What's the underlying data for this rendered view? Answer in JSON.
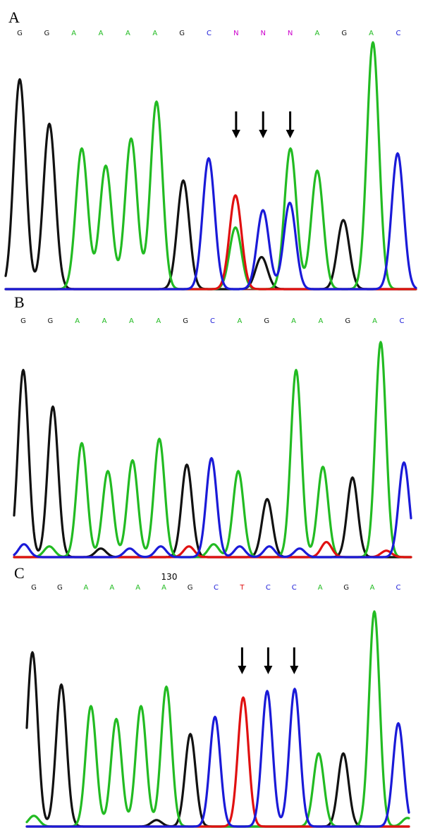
{
  "colors": {
    "A": "#22bb22",
    "C": "#1a1ad8",
    "G": "#111111",
    "T": "#e01010",
    "N": "#cc00cc",
    "baseline": "#8b2a2a"
  },
  "chart_data": [
    {
      "type": "line",
      "panel": "A",
      "bases": [
        "G",
        "G",
        "A",
        "A",
        "A",
        "A",
        "G",
        "C",
        "N",
        "N",
        "N",
        "A",
        "G",
        "A",
        "C"
      ],
      "position_label": "",
      "arrow_base_indices": [
        8,
        9,
        10
      ],
      "peaks": [
        {
          "base": "G",
          "x": 28,
          "h": 0.85
        },
        {
          "base": "G",
          "x": 70,
          "h": 0.67
        },
        {
          "base": "A",
          "x": 116,
          "h": 0.57
        },
        {
          "base": "A",
          "x": 150,
          "h": 0.5
        },
        {
          "base": "A",
          "x": 186,
          "h": 0.61
        },
        {
          "base": "A",
          "x": 222,
          "h": 0.76
        },
        {
          "base": "G",
          "x": 260,
          "h": 0.44
        },
        {
          "base": "C",
          "x": 296,
          "h": 0.53
        },
        {
          "base": "T",
          "x": 334,
          "h": 0.38
        },
        {
          "base": "A",
          "x": 334,
          "h": 0.25
        },
        {
          "base": "C",
          "x": 373,
          "h": 0.32
        },
        {
          "base": "G",
          "x": 371,
          "h": 0.13
        },
        {
          "base": "A",
          "x": 412,
          "h": 0.57
        },
        {
          "base": "C",
          "x": 411,
          "h": 0.35
        },
        {
          "base": "A",
          "x": 450,
          "h": 0.48
        },
        {
          "base": "G",
          "x": 487,
          "h": 0.28
        },
        {
          "base": "A",
          "x": 529,
          "h": 1.0
        },
        {
          "base": "C",
          "x": 564,
          "h": 0.55
        }
      ]
    },
    {
      "type": "line",
      "panel": "B",
      "bases": [
        "G",
        "G",
        "A",
        "A",
        "A",
        "A",
        "G",
        "C",
        "A",
        "G",
        "A",
        "A",
        "G",
        "A",
        "C"
      ],
      "position_label": "",
      "arrow_base_indices": [],
      "peaks": [
        {
          "base": "G",
          "x": 33,
          "h": 0.87
        },
        {
          "base": "G",
          "x": 75,
          "h": 0.7
        },
        {
          "base": "A",
          "x": 116,
          "h": 0.53
        },
        {
          "base": "A",
          "x": 153,
          "h": 0.4
        },
        {
          "base": "A",
          "x": 188,
          "h": 0.45
        },
        {
          "base": "A",
          "x": 226,
          "h": 0.55
        },
        {
          "base": "G",
          "x": 265,
          "h": 0.43
        },
        {
          "base": "C",
          "x": 300,
          "h": 0.46
        },
        {
          "base": "A",
          "x": 338,
          "h": 0.4
        },
        {
          "base": "G",
          "x": 379,
          "h": 0.27
        },
        {
          "base": "A",
          "x": 420,
          "h": 0.87
        },
        {
          "base": "A",
          "x": 458,
          "h": 0.42
        },
        {
          "base": "G",
          "x": 500,
          "h": 0.37
        },
        {
          "base": "A",
          "x": 540,
          "h": 1.0
        },
        {
          "base": "C",
          "x": 573,
          "h": 0.44
        },
        {
          "base": "C",
          "x": 34,
          "h": 0.06
        },
        {
          "base": "A",
          "x": 70,
          "h": 0.05
        },
        {
          "base": "G",
          "x": 143,
          "h": 0.04
        },
        {
          "base": "C",
          "x": 184,
          "h": 0.04
        },
        {
          "base": "C",
          "x": 228,
          "h": 0.05
        },
        {
          "base": "T",
          "x": 268,
          "h": 0.05
        },
        {
          "base": "A",
          "x": 303,
          "h": 0.06
        },
        {
          "base": "C",
          "x": 340,
          "h": 0.05
        },
        {
          "base": "C",
          "x": 382,
          "h": 0.05
        },
        {
          "base": "C",
          "x": 425,
          "h": 0.04
        },
        {
          "base": "T",
          "x": 463,
          "h": 0.07
        },
        {
          "base": "T",
          "x": 548,
          "h": 0.03
        }
      ]
    },
    {
      "type": "line",
      "panel": "C",
      "bases": [
        "G",
        "G",
        "A",
        "A",
        "A",
        "A",
        "G",
        "C",
        "T",
        "C",
        "C",
        "A",
        "G",
        "A",
        "C"
      ],
      "position_label": "130",
      "arrow_base_indices": [
        8,
        9,
        10
      ],
      "peaks": [
        {
          "base": "G",
          "x": 46,
          "h": 0.81
        },
        {
          "base": "G",
          "x": 87,
          "h": 0.66
        },
        {
          "base": "A",
          "x": 129,
          "h": 0.56
        },
        {
          "base": "A",
          "x": 165,
          "h": 0.5
        },
        {
          "base": "A",
          "x": 200,
          "h": 0.56
        },
        {
          "base": "A",
          "x": 236,
          "h": 0.65
        },
        {
          "base": "G",
          "x": 270,
          "h": 0.43
        },
        {
          "base": "C",
          "x": 305,
          "h": 0.51
        },
        {
          "base": "T",
          "x": 345,
          "h": 0.6
        },
        {
          "base": "C",
          "x": 379,
          "h": 0.63
        },
        {
          "base": "C",
          "x": 418,
          "h": 0.64
        },
        {
          "base": "A",
          "x": 452,
          "h": 0.34
        },
        {
          "base": "G",
          "x": 487,
          "h": 0.34
        },
        {
          "base": "A",
          "x": 531,
          "h": 1.0
        },
        {
          "base": "C",
          "x": 565,
          "h": 0.48
        },
        {
          "base": "A",
          "x": 48,
          "h": 0.05
        },
        {
          "base": "G",
          "x": 222,
          "h": 0.03
        },
        {
          "base": "A",
          "x": 578,
          "h": 0.04
        }
      ]
    }
  ]
}
